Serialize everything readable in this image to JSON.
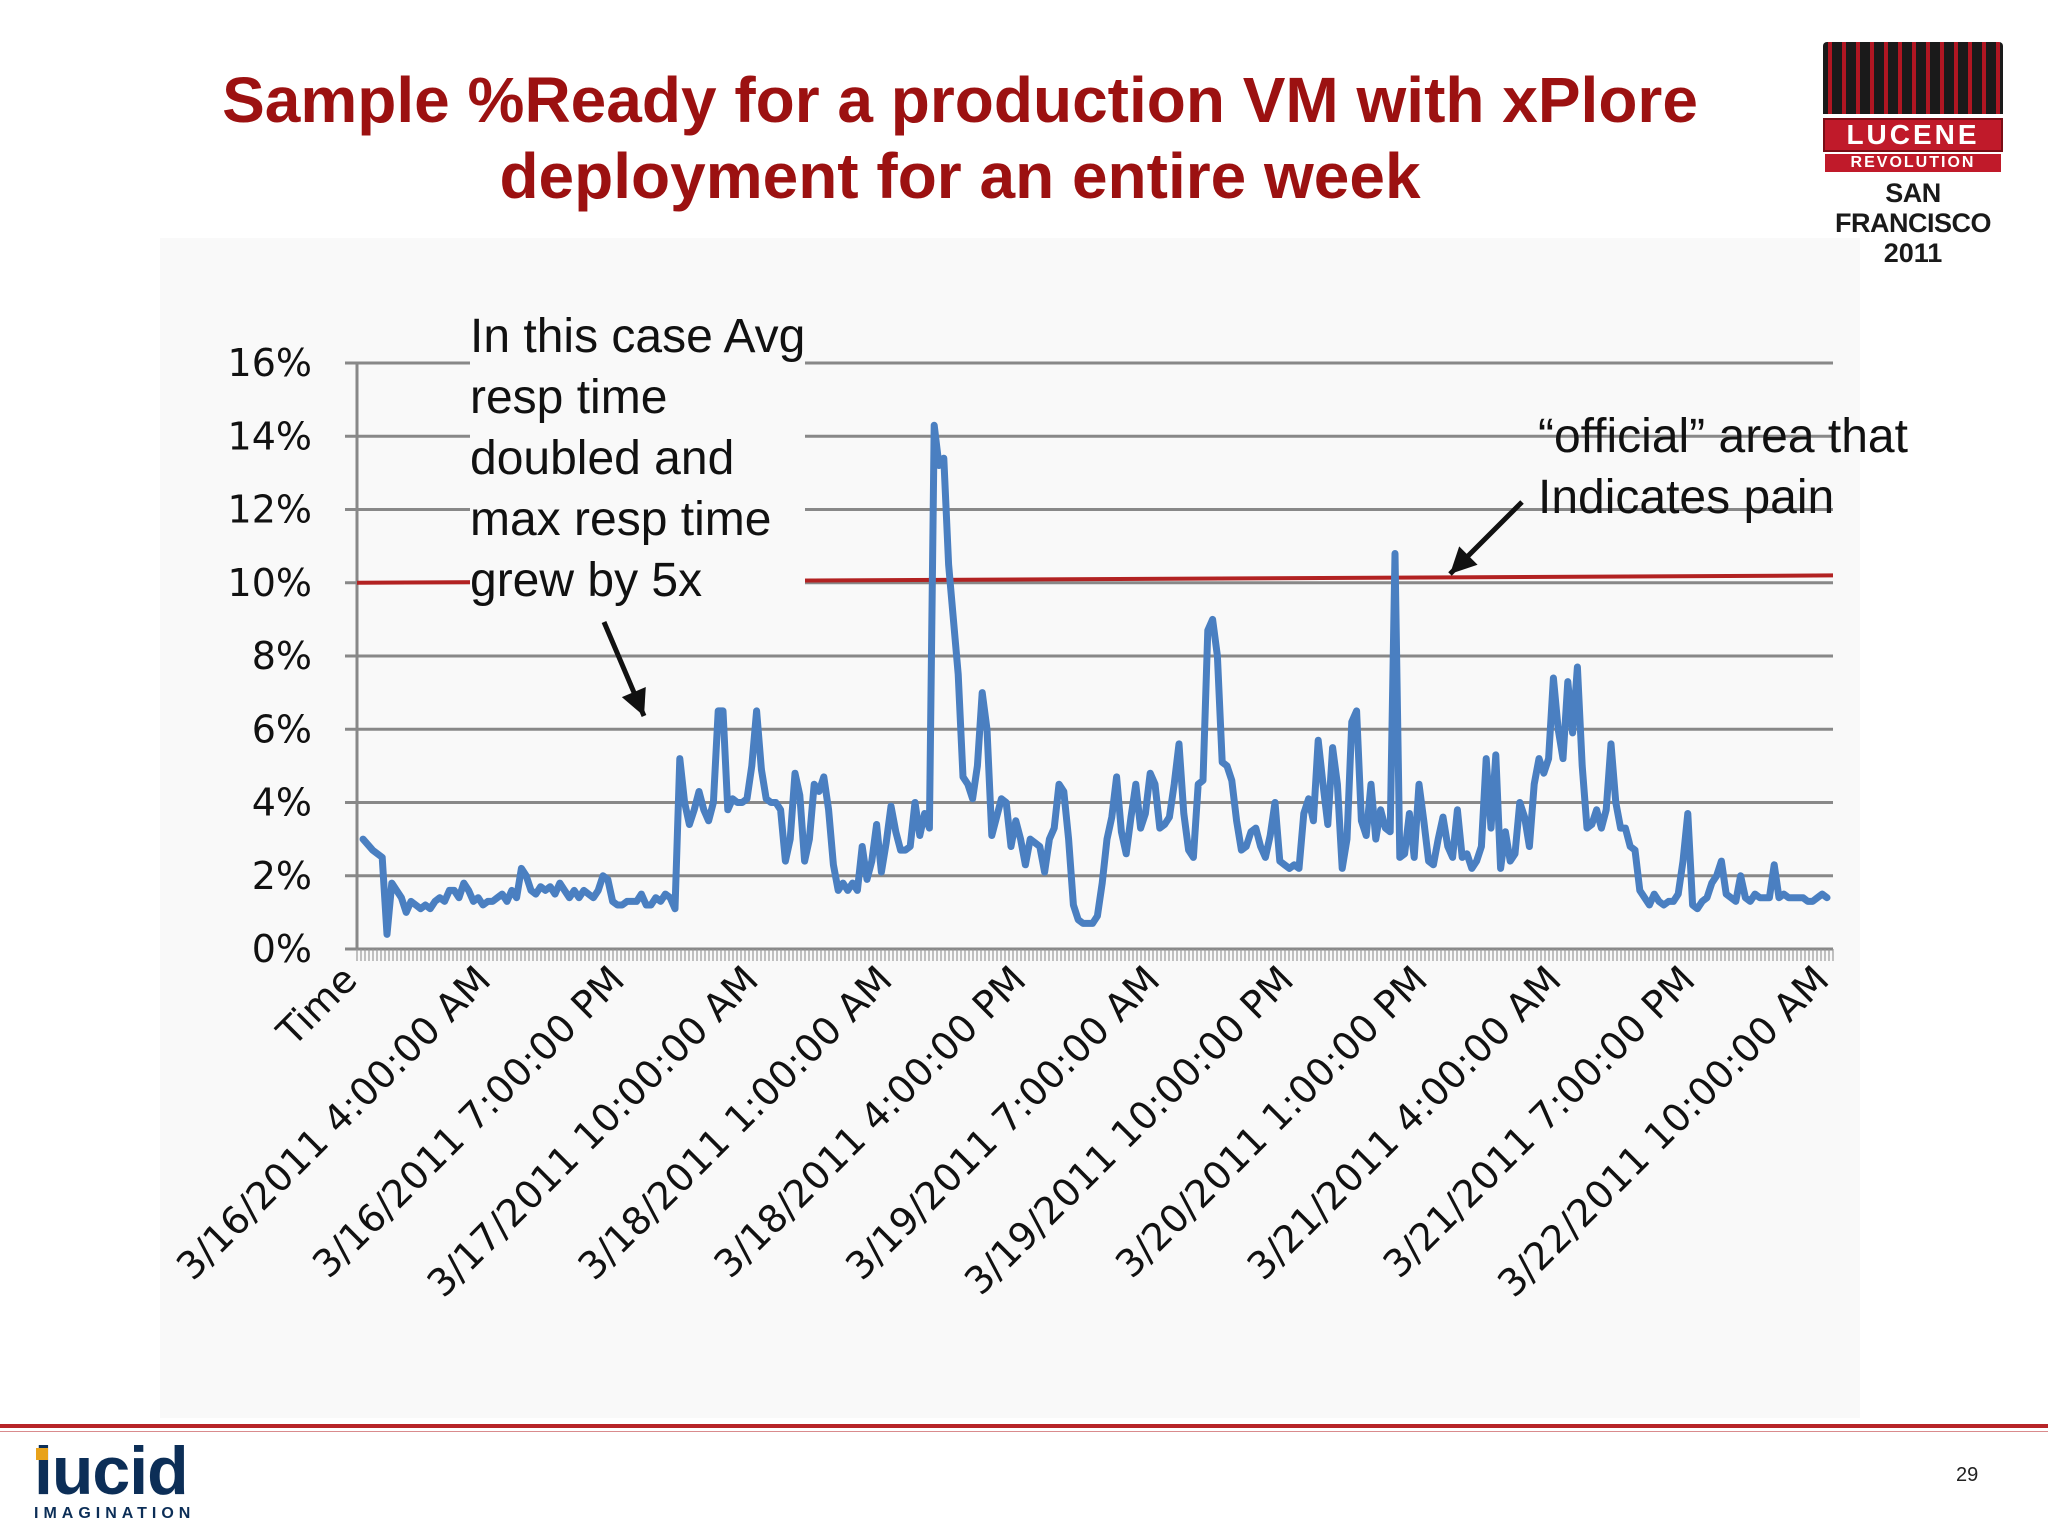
{
  "slide": {
    "title_line1": "Sample %Ready for a production VM with xPlore",
    "title_line2": "deployment for an entire week",
    "page_number": "29"
  },
  "annotations": {
    "left": [
      "In this case Avg",
      "resp time",
      "doubled and",
      "max resp time",
      "grew by 5x"
    ],
    "right": [
      "“official” area that",
      "Indicates pain"
    ]
  },
  "conference_logo": {
    "line1": "LUCENE",
    "line2": "REVOLUTION",
    "line3": "SAN FRANCISCO",
    "line4": "2011"
  },
  "company_logo": {
    "name": "lucid",
    "tagline": "IMAGINATION"
  },
  "colors": {
    "title": "#9c1111",
    "series": "#4a7fc1",
    "threshold": "#b22222",
    "grid": "#888888"
  },
  "chart_data": {
    "type": "line",
    "title": "",
    "xlabel": "",
    "ylabel": "",
    "ylim": [
      0,
      0.16
    ],
    "y_ticks": [
      0,
      0.02,
      0.04,
      0.06,
      0.08,
      0.1,
      0.12,
      0.14,
      0.16
    ],
    "y_tick_labels": [
      "0%",
      "2%",
      "4%",
      "6%",
      "8%",
      "10%",
      "12%",
      "14%",
      "16%"
    ],
    "x_tick_labels": [
      "Time",
      "3/16/2011 4:00:00 AM",
      "3/16/2011 7:00:00 PM",
      "3/17/2011 10:00:00 AM",
      "3/18/2011 1:00:00 AM",
      "3/18/2011 4:00:00 PM",
      "3/19/2011 7:00:00 AM",
      "3/19/2011 10:00:00 PM",
      "3/20/2011 1:00:00 PM",
      "3/21/2011 4:00:00 AM",
      "3/21/2011 7:00:00 PM",
      "3/22/2011 10:00:00 AM"
    ],
    "grid": true,
    "series": [
      {
        "name": "",
        "points": [
          [
            0,
            0.03
          ],
          [
            2,
            0.027
          ],
          [
            4,
            0.025
          ],
          [
            5,
            0.004
          ],
          [
            6,
            0.018
          ],
          [
            8,
            0.014
          ],
          [
            9,
            0.01
          ],
          [
            10,
            0.013
          ],
          [
            11,
            0.012
          ],
          [
            12,
            0.011
          ],
          [
            13,
            0.012
          ],
          [
            14,
            0.011
          ],
          [
            15,
            0.013
          ],
          [
            16,
            0.014
          ],
          [
            17,
            0.013
          ],
          [
            18,
            0.016
          ],
          [
            19,
            0.016
          ],
          [
            20,
            0.014
          ],
          [
            21,
            0.018
          ],
          [
            22,
            0.016
          ],
          [
            23,
            0.013
          ],
          [
            24,
            0.014
          ],
          [
            25,
            0.012
          ],
          [
            26,
            0.013
          ],
          [
            27,
            0.013
          ],
          [
            28,
            0.014
          ],
          [
            29,
            0.015
          ],
          [
            30,
            0.013
          ],
          [
            31,
            0.016
          ],
          [
            32,
            0.014
          ],
          [
            33,
            0.022
          ],
          [
            34,
            0.02
          ],
          [
            35,
            0.016
          ],
          [
            36,
            0.015
          ],
          [
            37,
            0.017
          ],
          [
            38,
            0.016
          ],
          [
            39,
            0.017
          ],
          [
            40,
            0.015
          ],
          [
            41,
            0.018
          ],
          [
            42,
            0.016
          ],
          [
            43,
            0.014
          ],
          [
            44,
            0.016
          ],
          [
            45,
            0.014
          ],
          [
            46,
            0.016
          ],
          [
            47,
            0.015
          ],
          [
            48,
            0.014
          ],
          [
            49,
            0.016
          ],
          [
            50,
            0.02
          ],
          [
            51,
            0.019
          ],
          [
            52,
            0.013
          ],
          [
            53,
            0.012
          ],
          [
            54,
            0.012
          ],
          [
            55,
            0.013
          ],
          [
            56,
            0.013
          ],
          [
            57,
            0.013
          ],
          [
            58,
            0.015
          ],
          [
            59,
            0.012
          ],
          [
            60,
            0.012
          ],
          [
            61,
            0.014
          ],
          [
            62,
            0.013
          ],
          [
            63,
            0.015
          ],
          [
            64,
            0.014
          ],
          [
            65,
            0.011
          ],
          [
            66,
            0.052
          ],
          [
            67,
            0.04
          ],
          [
            68,
            0.034
          ],
          [
            69,
            0.038
          ],
          [
            70,
            0.043
          ],
          [
            71,
            0.038
          ],
          [
            72,
            0.035
          ],
          [
            73,
            0.04
          ],
          [
            74,
            0.065
          ],
          [
            75,
            0.065
          ],
          [
            76,
            0.038
          ],
          [
            77,
            0.041
          ],
          [
            78,
            0.04
          ],
          [
            79,
            0.04
          ],
          [
            80,
            0.041
          ],
          [
            81,
            0.05
          ],
          [
            82,
            0.065
          ],
          [
            83,
            0.049
          ],
          [
            84,
            0.041
          ],
          [
            85,
            0.04
          ],
          [
            86,
            0.04
          ],
          [
            87,
            0.038
          ],
          [
            88,
            0.024
          ],
          [
            89,
            0.03
          ],
          [
            90,
            0.048
          ],
          [
            91,
            0.042
          ],
          [
            92,
            0.024
          ],
          [
            93,
            0.03
          ],
          [
            94,
            0.045
          ],
          [
            95,
            0.043
          ],
          [
            96,
            0.047
          ],
          [
            97,
            0.038
          ],
          [
            98,
            0.023
          ],
          [
            99,
            0.016
          ],
          [
            100,
            0.018
          ],
          [
            101,
            0.016
          ],
          [
            102,
            0.018
          ],
          [
            103,
            0.016
          ],
          [
            104,
            0.028
          ],
          [
            105,
            0.019
          ],
          [
            106,
            0.024
          ],
          [
            107,
            0.034
          ],
          [
            108,
            0.021
          ],
          [
            109,
            0.029
          ],
          [
            110,
            0.039
          ],
          [
            111,
            0.032
          ],
          [
            112,
            0.027
          ],
          [
            113,
            0.027
          ],
          [
            114,
            0.028
          ],
          [
            115,
            0.04
          ],
          [
            116,
            0.031
          ],
          [
            117,
            0.037
          ],
          [
            118,
            0.033
          ],
          [
            119,
            0.143
          ],
          [
            120,
            0.132
          ],
          [
            121,
            0.134
          ],
          [
            122,
            0.105
          ],
          [
            123,
            0.09
          ],
          [
            124,
            0.075
          ],
          [
            125,
            0.047
          ],
          [
            126,
            0.045
          ],
          [
            127,
            0.041
          ],
          [
            128,
            0.05
          ],
          [
            129,
            0.07
          ],
          [
            130,
            0.06
          ],
          [
            131,
            0.031
          ],
          [
            132,
            0.036
          ],
          [
            133,
            0.041
          ],
          [
            134,
            0.04
          ],
          [
            135,
            0.028
          ],
          [
            136,
            0.035
          ],
          [
            137,
            0.03
          ],
          [
            138,
            0.023
          ],
          [
            139,
            0.03
          ],
          [
            140,
            0.029
          ],
          [
            141,
            0.028
          ],
          [
            142,
            0.021
          ],
          [
            143,
            0.03
          ],
          [
            144,
            0.033
          ],
          [
            145,
            0.045
          ],
          [
            146,
            0.043
          ],
          [
            147,
            0.03
          ],
          [
            148,
            0.012
          ],
          [
            149,
            0.008
          ],
          [
            150,
            0.007
          ],
          [
            151,
            0.007
          ],
          [
            152,
            0.007
          ],
          [
            153,
            0.009
          ],
          [
            154,
            0.018
          ],
          [
            155,
            0.03
          ],
          [
            156,
            0.036
          ],
          [
            157,
            0.047
          ],
          [
            158,
            0.032
          ],
          [
            159,
            0.026
          ],
          [
            160,
            0.036
          ],
          [
            161,
            0.045
          ],
          [
            162,
            0.033
          ],
          [
            163,
            0.037
          ],
          [
            164,
            0.048
          ],
          [
            165,
            0.045
          ],
          [
            166,
            0.033
          ],
          [
            167,
            0.034
          ],
          [
            168,
            0.036
          ],
          [
            169,
            0.045
          ],
          [
            170,
            0.056
          ],
          [
            171,
            0.037
          ],
          [
            172,
            0.027
          ],
          [
            173,
            0.025
          ],
          [
            174,
            0.045
          ],
          [
            175,
            0.046
          ],
          [
            176,
            0.087
          ],
          [
            177,
            0.09
          ],
          [
            178,
            0.08
          ],
          [
            179,
            0.051
          ],
          [
            180,
            0.05
          ],
          [
            181,
            0.046
          ],
          [
            182,
            0.035
          ],
          [
            183,
            0.027
          ],
          [
            184,
            0.028
          ],
          [
            185,
            0.032
          ],
          [
            186,
            0.033
          ],
          [
            187,
            0.028
          ],
          [
            188,
            0.025
          ],
          [
            189,
            0.031
          ],
          [
            190,
            0.04
          ],
          [
            191,
            0.024
          ],
          [
            192,
            0.023
          ],
          [
            193,
            0.022
          ],
          [
            194,
            0.023
          ],
          [
            195,
            0.022
          ],
          [
            196,
            0.037
          ],
          [
            197,
            0.041
          ],
          [
            198,
            0.035
          ],
          [
            199,
            0.057
          ],
          [
            200,
            0.045
          ],
          [
            201,
            0.034
          ],
          [
            202,
            0.055
          ],
          [
            203,
            0.045
          ],
          [
            204,
            0.022
          ],
          [
            205,
            0.03
          ],
          [
            206,
            0.062
          ],
          [
            207,
            0.065
          ],
          [
            208,
            0.035
          ],
          [
            209,
            0.031
          ],
          [
            210,
            0.045
          ],
          [
            211,
            0.03
          ],
          [
            212,
            0.038
          ],
          [
            213,
            0.033
          ],
          [
            214,
            0.032
          ],
          [
            215,
            0.108
          ],
          [
            216,
            0.025
          ],
          [
            217,
            0.026
          ],
          [
            218,
            0.037
          ],
          [
            219,
            0.025
          ],
          [
            220,
            0.045
          ],
          [
            221,
            0.035
          ],
          [
            222,
            0.024
          ],
          [
            223,
            0.023
          ],
          [
            224,
            0.03
          ],
          [
            225,
            0.036
          ],
          [
            226,
            0.028
          ],
          [
            227,
            0.025
          ],
          [
            228,
            0.038
          ],
          [
            229,
            0.025
          ],
          [
            230,
            0.026
          ],
          [
            231,
            0.022
          ],
          [
            232,
            0.024
          ],
          [
            233,
            0.028
          ],
          [
            234,
            0.052
          ],
          [
            235,
            0.033
          ],
          [
            236,
            0.053
          ],
          [
            237,
            0.022
          ],
          [
            238,
            0.032
          ],
          [
            239,
            0.024
          ],
          [
            240,
            0.026
          ],
          [
            241,
            0.04
          ],
          [
            242,
            0.036
          ],
          [
            243,
            0.028
          ],
          [
            244,
            0.045
          ],
          [
            245,
            0.052
          ],
          [
            246,
            0.048
          ],
          [
            247,
            0.052
          ],
          [
            248,
            0.074
          ],
          [
            249,
            0.06
          ],
          [
            250,
            0.052
          ],
          [
            251,
            0.073
          ],
          [
            252,
            0.059
          ],
          [
            253,
            0.077
          ],
          [
            254,
            0.05
          ],
          [
            255,
            0.033
          ],
          [
            256,
            0.034
          ],
          [
            257,
            0.038
          ],
          [
            258,
            0.033
          ],
          [
            259,
            0.038
          ],
          [
            260,
            0.056
          ],
          [
            261,
            0.04
          ],
          [
            262,
            0.033
          ],
          [
            263,
            0.033
          ],
          [
            264,
            0.028
          ],
          [
            265,
            0.027
          ],
          [
            266,
            0.016
          ],
          [
            267,
            0.014
          ],
          [
            268,
            0.012
          ],
          [
            269,
            0.015
          ],
          [
            270,
            0.013
          ],
          [
            271,
            0.012
          ],
          [
            272,
            0.013
          ],
          [
            273,
            0.013
          ],
          [
            274,
            0.015
          ],
          [
            275,
            0.024
          ],
          [
            276,
            0.037
          ],
          [
            277,
            0.012
          ],
          [
            278,
            0.011
          ],
          [
            279,
            0.013
          ],
          [
            280,
            0.014
          ],
          [
            281,
            0.018
          ],
          [
            282,
            0.02
          ],
          [
            283,
            0.024
          ],
          [
            284,
            0.015
          ],
          [
            285,
            0.014
          ],
          [
            286,
            0.013
          ],
          [
            287,
            0.02
          ],
          [
            288,
            0.014
          ],
          [
            289,
            0.013
          ],
          [
            290,
            0.015
          ],
          [
            291,
            0.014
          ],
          [
            292,
            0.014
          ],
          [
            293,
            0.014
          ],
          [
            294,
            0.023
          ],
          [
            295,
            0.014
          ],
          [
            296,
            0.015
          ],
          [
            297,
            0.014
          ],
          [
            298,
            0.014
          ],
          [
            299,
            0.014
          ],
          [
            300,
            0.014
          ],
          [
            301,
            0.013
          ],
          [
            302,
            0.013
          ],
          [
            303,
            0.014
          ],
          [
            304,
            0.015
          ],
          [
            305,
            0.014
          ]
        ]
      }
    ],
    "reference_lines": [
      {
        "value": 0.1,
        "end_value": 0.102,
        "color": "#b22222"
      }
    ]
  }
}
